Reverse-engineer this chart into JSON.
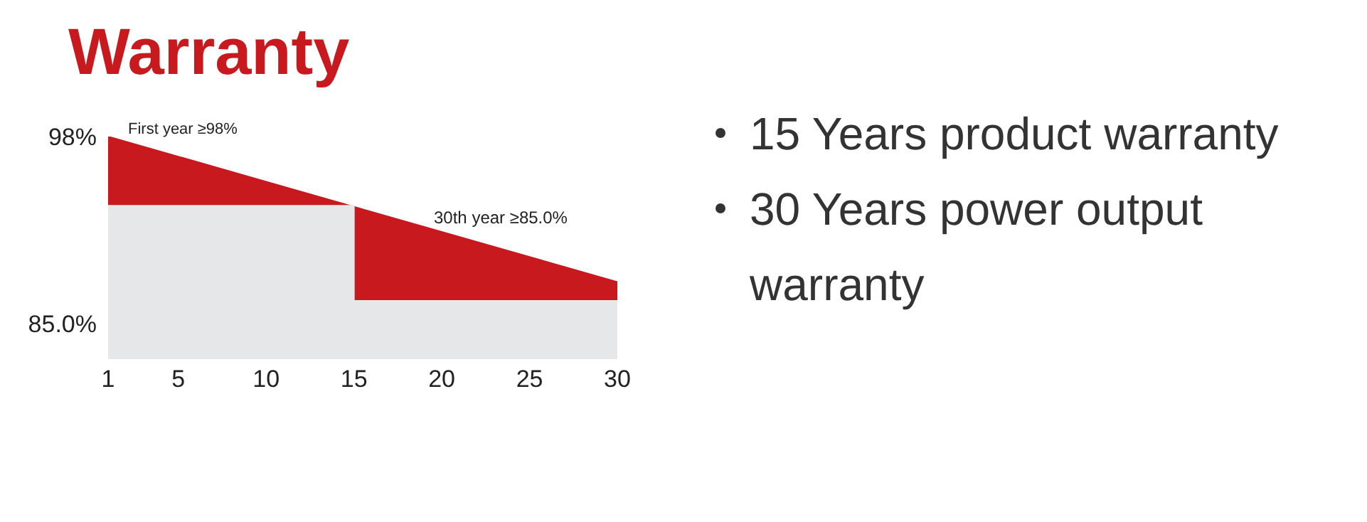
{
  "chart_data": {
    "type": "area",
    "title": "Warranty",
    "annotations": [
      "First year ≥98%",
      "30th year ≥85.0%",
      "15 Years product warranty",
      "30 Years power output warranty"
    ],
    "series": [
      {
        "color": "#c8191f",
        "x": [
          1,
          30
        ],
        "values": [
          98,
          87.9
        ]
      },
      {
        "color": "#e6e7e9",
        "x": [
          1,
          15,
          15,
          30
        ],
        "values": [
          93.2,
          93.2,
          86.6,
          86.6
        ]
      }
    ],
    "xlim": [
      1,
      30
    ],
    "xticks": [
      1,
      5,
      10,
      15,
      20,
      25,
      30
    ],
    "ylim": [
      82.6,
      98
    ],
    "yticks": [
      {
        "value": 98,
        "label": "98%"
      },
      {
        "value": 85,
        "label": "85.0%"
      }
    ],
    "grid": false,
    "legend": false
  }
}
